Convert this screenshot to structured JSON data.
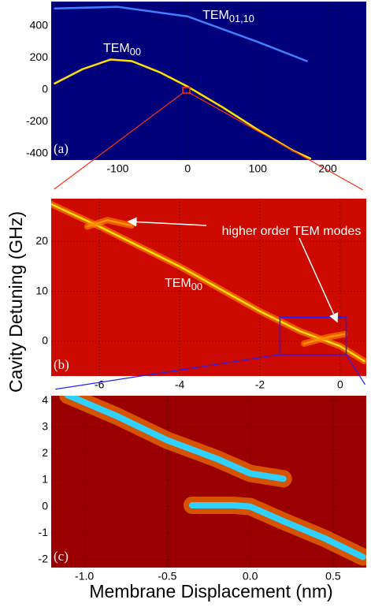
{
  "chart_data": [
    {
      "type": "line",
      "panel_label": "(a)",
      "background": "#00007a",
      "grid": true,
      "xlim": [
        -195,
        255
      ],
      "ylim": [
        -440,
        553
      ],
      "xticks": [
        -100,
        0,
        100,
        200
      ],
      "yticks": [
        -400,
        -200,
        0,
        200,
        400
      ],
      "series": [
        {
          "color": "#ffe000",
          "x": [
            -190,
            -150,
            -110,
            -80,
            -40,
            0,
            50,
            100,
            150,
            175
          ],
          "y": [
            40,
            130,
            190,
            180,
            110,
            20,
            -110,
            -250,
            -380,
            -430
          ]
        },
        {
          "color": "#4080ff",
          "x": [
            -190,
            -100,
            0,
            100,
            170
          ],
          "y": [
            510,
            520,
            460,
            300,
            180
          ]
        }
      ],
      "annotations": [
        {
          "text": "TEM",
          "sub": "01,10"
        },
        {
          "text": "TEM",
          "sub": "00"
        }
      ],
      "zoom_box": {
        "x": [
          -7,
          3
        ],
        "y": [
          -20,
          15
        ],
        "color": "#ff3010"
      }
    },
    {
      "type": "line",
      "panel_label": "(b)",
      "background": "#cc0a00",
      "grid": true,
      "xlim": [
        -7.2,
        0.65
      ],
      "ylim": [
        -7,
        28.6
      ],
      "xticks": [
        -6,
        -4,
        -2,
        0
      ],
      "yticks": [
        0,
        10,
        20
      ],
      "ylabel": "Cavity Detuning (GHz)",
      "series": [
        {
          "color": "#ffe000",
          "x": [
            -7.2,
            -6,
            -4,
            -2,
            -1,
            0,
            0.6
          ],
          "y": [
            27.5,
            23,
            15,
            6,
            2,
            -1,
            -4
          ]
        },
        {
          "color": "#ff9000",
          "x": [
            -6.3,
            -5.8,
            -5.2
          ],
          "y": [
            23,
            24.3,
            23.2
          ]
        },
        {
          "color": "#ff9000",
          "x": [
            -0.9,
            -0.3,
            0.1
          ],
          "y": [
            -0.5,
            0.8,
            1.4
          ]
        }
      ],
      "annotations": [
        {
          "text": "higher order TEM modes"
        },
        {
          "text": "TEM",
          "sub": "00"
        }
      ],
      "zoom_box": {
        "x": [
          -1.5,
          0.15
        ],
        "y": [
          -2.7,
          4.8
        ],
        "color": "#2020ff"
      }
    },
    {
      "type": "line",
      "panel_label": "(c)",
      "background": "#9a0000",
      "grid": true,
      "xlim": [
        -1.2,
        0.7
      ],
      "ylim": [
        -2.3,
        4.18
      ],
      "xticks": [
        {
          "value": -1.0,
          "label": "-1.0"
        },
        -0.5,
        {
          "value": 0.0,
          "label": "0.0"
        },
        0.5
      ],
      "yticks": [
        -2,
        -1,
        0,
        1,
        2,
        3,
        4
      ],
      "xlabel": "Membrane Displacement (nm)",
      "series": [
        {
          "color": "#30d0ff",
          "x": [
            -1.1,
            -0.8,
            -0.5,
            -0.2,
            0,
            0.2
          ],
          "y": [
            4.2,
            3.4,
            2.5,
            1.8,
            1.25,
            1.05
          ]
        },
        {
          "color": "#30d0ff",
          "x": [
            -0.35,
            -0.1,
            0,
            0.2,
            0.45,
            0.68
          ],
          "y": [
            0.05,
            0.05,
            0,
            -0.55,
            -1.2,
            -1.9
          ]
        }
      ]
    }
  ]
}
